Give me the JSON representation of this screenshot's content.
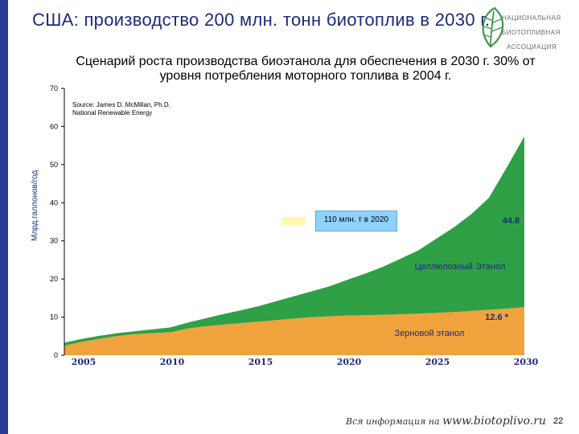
{
  "slide": {
    "title": "США: производство 200 млн. тонн биотоплив в 2030 г.",
    "subtitle": "Сценарий роста производства биоэтанола для обеспечения в 2030 г. 30% от уровня потребления моторного топлива в 2004 г.",
    "source_line1": "Source: James D. McMillan, Ph.D.",
    "source_line2": "National Renewable Energy",
    "footer_prefix": "Вся информация на",
    "footer_url": "www.biotoplivo.ru",
    "page_number": "22",
    "logo": {
      "line1": "НАЦИОНАЛЬНАЯ",
      "line2": "БИОТОПЛИВНАЯ",
      "line3": "АССОЦИАЦИЯ",
      "icon": "leaf-logo-icon"
    },
    "callout": "110 млн. т  в 2020"
  },
  "colors": {
    "grain": "#f0a33c",
    "cellulose": "#2fa046",
    "accent": "#1d2b7a",
    "callout": "#8fd2ff"
  },
  "chart_data": {
    "type": "area",
    "stacked": true,
    "ylabel": "Млрд.галлонов/год",
    "xlabel": "",
    "ylim": [
      0,
      70
    ],
    "yticks": [
      0,
      10,
      20,
      30,
      40,
      50,
      60,
      70
    ],
    "x_tick_labels": [
      "2005",
      "2010",
      "2015",
      "2020",
      "2025",
      "2030"
    ],
    "x": [
      2004,
      2005,
      2006,
      2007,
      2008,
      2009,
      2010,
      2011,
      2012,
      2013,
      2014,
      2015,
      2016,
      2017,
      2018,
      2019,
      2020,
      2021,
      2022,
      2023,
      2024,
      2025,
      2026,
      2027,
      2028,
      2029,
      2030
    ],
    "series": [
      {
        "name": "Зерновой этанол",
        "values": [
          2.5,
          3.5,
          4.3,
          5.0,
          5.5,
          5.8,
          6.0,
          7.0,
          7.6,
          8.0,
          8.4,
          8.8,
          9.2,
          9.6,
          10.0,
          10.2,
          10.4,
          10.5,
          10.6,
          10.7,
          10.9,
          11.1,
          11.3,
          11.6,
          11.9,
          12.2,
          12.6
        ]
      },
      {
        "name": "Целлюлозный Этанол",
        "values": [
          0.8,
          0.8,
          0.8,
          0.8,
          0.8,
          1.0,
          1.3,
          1.6,
          2.1,
          2.8,
          3.4,
          4.1,
          5.0,
          5.9,
          6.8,
          7.9,
          9.4,
          10.9,
          12.6,
          14.6,
          16.6,
          19.4,
          22.2,
          25.4,
          29.4,
          37.0,
          44.8
        ]
      }
    ],
    "annotations": [
      {
        "text": "12.6 *",
        "series": "Зерновой этанол"
      },
      {
        "text": "44.8",
        "series": "Целлюлозный Этанол"
      },
      {
        "text": "Целлюлозный Этанол",
        "series": "Целлюлозный Этанол"
      },
      {
        "text": "Зерновой этанол",
        "series": "Зерновой этанол"
      }
    ],
    "grid": false,
    "legend": "none"
  }
}
